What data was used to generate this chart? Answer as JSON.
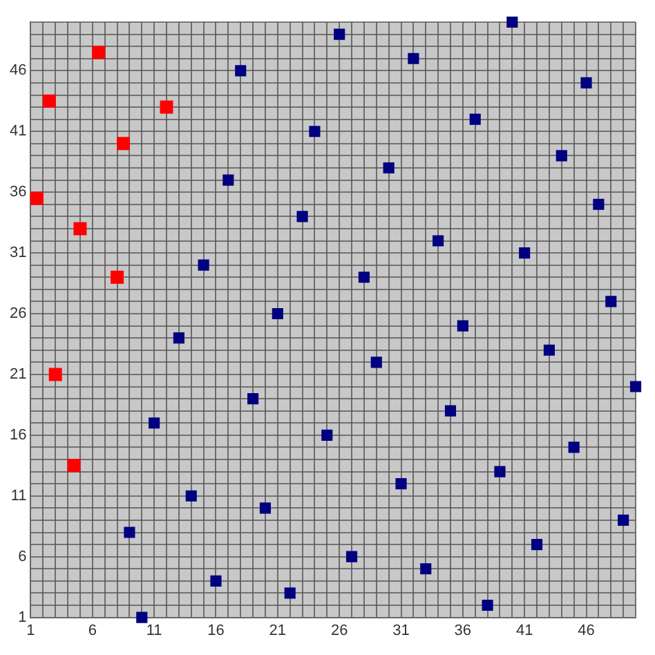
{
  "chart_data": {
    "type": "scatter",
    "marker": "square",
    "grid": true,
    "xlim": [
      1,
      50
    ],
    "ylim": [
      1,
      50
    ],
    "xticks": [
      1,
      {
        "value": 2,
        "label": null
      },
      {
        "value": 3,
        "label": null
      },
      {
        "value": 4,
        "label": null
      },
      {
        "value": 5,
        "label": null
      },
      6,
      {
        "value": 7,
        "label": null
      },
      {
        "value": 8,
        "label": null
      },
      {
        "value": 9,
        "label": null
      },
      {
        "value": 10,
        "label": null
      },
      11,
      {
        "value": 12,
        "label": null
      },
      {
        "value": 13,
        "label": null
      },
      {
        "value": 14,
        "label": null
      },
      {
        "value": 15,
        "label": null
      },
      16,
      {
        "value": 17,
        "label": null
      },
      {
        "value": 18,
        "label": null
      },
      {
        "value": 19,
        "label": null
      },
      {
        "value": 20,
        "label": null
      },
      21,
      {
        "value": 22,
        "label": null
      },
      {
        "value": 23,
        "label": null
      },
      {
        "value": 24,
        "label": null
      },
      {
        "value": 25,
        "label": null
      },
      26,
      {
        "value": 27,
        "label": null
      },
      {
        "value": 28,
        "label": null
      },
      {
        "value": 29,
        "label": null
      },
      {
        "value": 30,
        "label": null
      },
      31,
      {
        "value": 32,
        "label": null
      },
      {
        "value": 33,
        "label": null
      },
      {
        "value": 34,
        "label": null
      },
      {
        "value": 35,
        "label": null
      },
      36,
      {
        "value": 37,
        "label": null
      },
      {
        "value": 38,
        "label": null
      },
      {
        "value": 39,
        "label": null
      },
      {
        "value": 40,
        "label": null
      },
      41,
      {
        "value": 42,
        "label": null
      },
      {
        "value": 43,
        "label": null
      },
      {
        "value": 44,
        "label": null
      },
      {
        "value": 45,
        "label": null
      },
      46,
      {
        "value": 47,
        "label": null
      },
      {
        "value": 48,
        "label": null
      },
      {
        "value": 49,
        "label": null
      },
      {
        "value": 50,
        "label": null
      }
    ],
    "yticks": [
      1,
      {
        "value": 2,
        "label": null
      },
      {
        "value": 3,
        "label": null
      },
      {
        "value": 4,
        "label": null
      },
      {
        "value": 5,
        "label": null
      },
      6,
      {
        "value": 7,
        "label": null
      },
      {
        "value": 8,
        "label": null
      },
      {
        "value": 9,
        "label": null
      },
      {
        "value": 10,
        "label": null
      },
      11,
      {
        "value": 12,
        "label": null
      },
      {
        "value": 13,
        "label": null
      },
      {
        "value": 14,
        "label": null
      },
      {
        "value": 15,
        "label": null
      },
      16,
      {
        "value": 17,
        "label": null
      },
      {
        "value": 18,
        "label": null
      },
      {
        "value": 19,
        "label": null
      },
      {
        "value": 20,
        "label": null
      },
      21,
      {
        "value": 22,
        "label": null
      },
      {
        "value": 23,
        "label": null
      },
      {
        "value": 24,
        "label": null
      },
      {
        "value": 25,
        "label": null
      },
      26,
      {
        "value": 27,
        "label": null
      },
      {
        "value": 28,
        "label": null
      },
      {
        "value": 29,
        "label": null
      },
      {
        "value": 30,
        "label": null
      },
      31,
      {
        "value": 32,
        "label": null
      },
      {
        "value": 33,
        "label": null
      },
      {
        "value": 34,
        "label": null
      },
      {
        "value": 35,
        "label": null
      },
      36,
      {
        "value": 37,
        "label": null
      },
      {
        "value": 38,
        "label": null
      },
      {
        "value": 39,
        "label": null
      },
      {
        "value": 40,
        "label": null
      },
      41,
      {
        "value": 42,
        "label": null
      },
      {
        "value": 43,
        "label": null
      },
      {
        "value": 44,
        "label": null
      },
      {
        "value": 45,
        "label": null
      },
      46,
      {
        "value": 47,
        "label": null
      },
      {
        "value": 48,
        "label": null
      },
      {
        "value": 49,
        "label": null
      },
      {
        "value": 50,
        "label": null
      }
    ],
    "series": [
      {
        "color": "#000080",
        "x": [
          18,
          24,
          17,
          23,
          15,
          21,
          13,
          19,
          11,
          25,
          14,
          20,
          9,
          16,
          22,
          10,
          26,
          32,
          40,
          46,
          37,
          30,
          44,
          47,
          34,
          41,
          28,
          48,
          36,
          29,
          43,
          50,
          35,
          45,
          39,
          31,
          49,
          42,
          27,
          33,
          38
        ],
        "values": [
          46,
          41,
          37,
          34,
          30,
          26,
          24,
          19,
          17,
          16,
          11,
          10,
          8,
          4,
          3,
          1,
          49,
          47,
          50,
          45,
          42,
          38,
          39,
          35,
          32,
          31,
          29,
          27,
          25,
          22,
          23,
          20,
          18,
          15,
          13,
          12,
          9,
          7,
          6,
          5,
          2
        ]
      },
      {
        "color": "#ff0000",
        "x": [
          6.5,
          2.5,
          12,
          8.5,
          1.5,
          5,
          8,
          3,
          4.5
        ],
        "values": [
          47.5,
          43.5,
          43,
          40,
          35.5,
          33,
          29,
          21,
          13.5
        ]
      }
    ]
  }
}
